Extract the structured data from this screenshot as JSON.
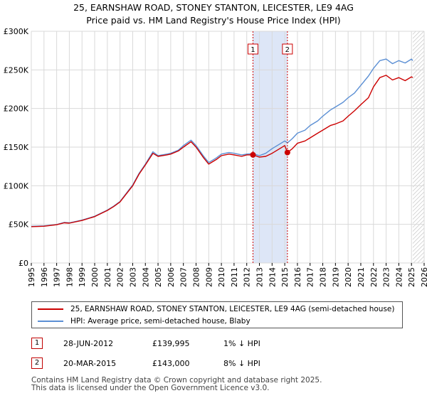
{
  "title_line1": "25, EARNSHAW ROAD, STONEY STANTON, LEICESTER, LE9 4AG",
  "title_line2": "Price paid vs. HM Land Registry's House Price Index (HPI)",
  "chart_data": {
    "type": "line",
    "x_range": [
      1995,
      2026
    ],
    "ylim": [
      0,
      300000
    ],
    "y_ticks": [
      {
        "value": 0,
        "label": "£0"
      },
      {
        "value": 50000,
        "label": "£50K"
      },
      {
        "value": 100000,
        "label": "£100K"
      },
      {
        "value": 150000,
        "label": "£150K"
      },
      {
        "value": 200000,
        "label": "£200K"
      },
      {
        "value": 250000,
        "label": "£250K"
      },
      {
        "value": 300000,
        "label": "£300K"
      }
    ],
    "x_ticks": [
      "1995",
      "1996",
      "1997",
      "1998",
      "1999",
      "2000",
      "2001",
      "2002",
      "2003",
      "2004",
      "2005",
      "2006",
      "2007",
      "2008",
      "2009",
      "2010",
      "2011",
      "2012",
      "2013",
      "2014",
      "2015",
      "2016",
      "2017",
      "2018",
      "2019",
      "2020",
      "2021",
      "2022",
      "2023",
      "2024",
      "2025",
      "2026"
    ],
    "grid": true,
    "shaded_span": {
      "from": 2012.49,
      "to": 2015.21,
      "color": "#dde6f7"
    },
    "future_hatch_from": 2025.1,
    "series": [
      {
        "name": "25, EARNSHAW ROAD, STONEY STANTON, LEICESTER, LE9 4AG (semi-detached house)",
        "color": "#cc0000",
        "points": [
          [
            1995,
            47000
          ],
          [
            1996,
            47600
          ],
          [
            1997,
            49500
          ],
          [
            1997.6,
            52000
          ],
          [
            1998,
            51500
          ],
          [
            1999,
            55000
          ],
          [
            2000,
            60000
          ],
          [
            2001,
            68000
          ],
          [
            2001.5,
            73000
          ],
          [
            2002,
            79000
          ],
          [
            2003,
            100000
          ],
          [
            2003.5,
            115000
          ],
          [
            2004,
            127000
          ],
          [
            2004.6,
            142000
          ],
          [
            2005,
            138000
          ],
          [
            2005.7,
            140000
          ],
          [
            2006,
            141000
          ],
          [
            2006.6,
            145000
          ],
          [
            2007,
            150000
          ],
          [
            2007.6,
            157000
          ],
          [
            2008,
            150000
          ],
          [
            2008.6,
            136000
          ],
          [
            2009,
            128000
          ],
          [
            2009.6,
            134000
          ],
          [
            2010,
            139000
          ],
          [
            2010.6,
            141000
          ],
          [
            2011,
            140000
          ],
          [
            2011.6,
            138000
          ],
          [
            2012,
            140000
          ],
          [
            2012.49,
            139995
          ],
          [
            2013,
            137000
          ],
          [
            2013.5,
            138000
          ],
          [
            2014,
            142000
          ],
          [
            2014.6,
            148000
          ],
          [
            2015,
            152000
          ],
          [
            2015.21,
            143000
          ],
          [
            2015.6,
            148000
          ],
          [
            2016,
            155000
          ],
          [
            2016.6,
            158000
          ],
          [
            2017,
            162000
          ],
          [
            2017.6,
            168000
          ],
          [
            2018,
            172000
          ],
          [
            2018.6,
            178000
          ],
          [
            2019,
            180000
          ],
          [
            2019.6,
            184000
          ],
          [
            2020,
            190000
          ],
          [
            2020.5,
            197000
          ],
          [
            2021,
            205000
          ],
          [
            2021.6,
            214000
          ],
          [
            2022,
            228000
          ],
          [
            2022.5,
            240000
          ],
          [
            2023,
            243000
          ],
          [
            2023.5,
            237000
          ],
          [
            2024,
            240000
          ],
          [
            2024.5,
            236000
          ],
          [
            2025,
            241000
          ],
          [
            2025.1,
            240000
          ]
        ]
      },
      {
        "name": "HPI: Average price, semi-detached house, Blaby",
        "color": "#5b8fd4",
        "points": [
          [
            1995,
            47500
          ],
          [
            1996,
            48000
          ],
          [
            1997,
            49800
          ],
          [
            1997.6,
            52500
          ],
          [
            1998,
            52000
          ],
          [
            1999,
            55500
          ],
          [
            2000,
            60500
          ],
          [
            2001,
            68500
          ],
          [
            2001.5,
            73500
          ],
          [
            2002,
            79500
          ],
          [
            2003,
            101000
          ],
          [
            2003.5,
            116000
          ],
          [
            2004,
            128000
          ],
          [
            2004.6,
            144000
          ],
          [
            2005,
            139000
          ],
          [
            2005.7,
            141000
          ],
          [
            2006,
            142000
          ],
          [
            2006.6,
            146000
          ],
          [
            2007,
            152000
          ],
          [
            2007.6,
            159000
          ],
          [
            2008,
            152000
          ],
          [
            2008.6,
            138000
          ],
          [
            2009,
            130000
          ],
          [
            2009.6,
            136000
          ],
          [
            2010,
            141000
          ],
          [
            2010.6,
            143000
          ],
          [
            2011,
            142000
          ],
          [
            2011.6,
            140000
          ],
          [
            2012,
            141000
          ],
          [
            2012.49,
            141500
          ],
          [
            2013,
            139000
          ],
          [
            2013.5,
            142000
          ],
          [
            2014,
            148000
          ],
          [
            2014.6,
            154000
          ],
          [
            2015,
            158000
          ],
          [
            2015.21,
            155500
          ],
          [
            2015.6,
            161000
          ],
          [
            2016,
            168000
          ],
          [
            2016.6,
            172000
          ],
          [
            2017,
            178000
          ],
          [
            2017.6,
            184000
          ],
          [
            2018,
            190000
          ],
          [
            2018.6,
            198000
          ],
          [
            2019,
            202000
          ],
          [
            2019.6,
            208000
          ],
          [
            2020,
            214000
          ],
          [
            2020.5,
            220000
          ],
          [
            2021,
            230000
          ],
          [
            2021.6,
            242000
          ],
          [
            2022,
            252000
          ],
          [
            2022.5,
            262000
          ],
          [
            2023,
            264000
          ],
          [
            2023.5,
            258000
          ],
          [
            2024,
            262000
          ],
          [
            2024.5,
            259000
          ],
          [
            2025,
            264000
          ],
          [
            2025.1,
            262000
          ]
        ]
      }
    ],
    "markers": [
      {
        "label": "1",
        "x": 2012.49,
        "value": 139995
      },
      {
        "label": "2",
        "x": 2015.21,
        "value": 143000
      }
    ]
  },
  "legend": {
    "series1": "25, EARNSHAW ROAD, STONEY STANTON, LEICESTER, LE9 4AG (semi-detached house)",
    "series2": "HPI: Average price, semi-detached house, Blaby"
  },
  "transactions": [
    {
      "num": "1",
      "date": "28-JUN-2012",
      "price": "£139,995",
      "hpi": "1% ↓ HPI"
    },
    {
      "num": "2",
      "date": "20-MAR-2015",
      "price": "£143,000",
      "hpi": "8% ↓ HPI"
    }
  ],
  "footer_line1": "Contains HM Land Registry data © Crown copyright and database right 2025.",
  "footer_line2": "This data is licensed under the Open Government Licence v3.0."
}
